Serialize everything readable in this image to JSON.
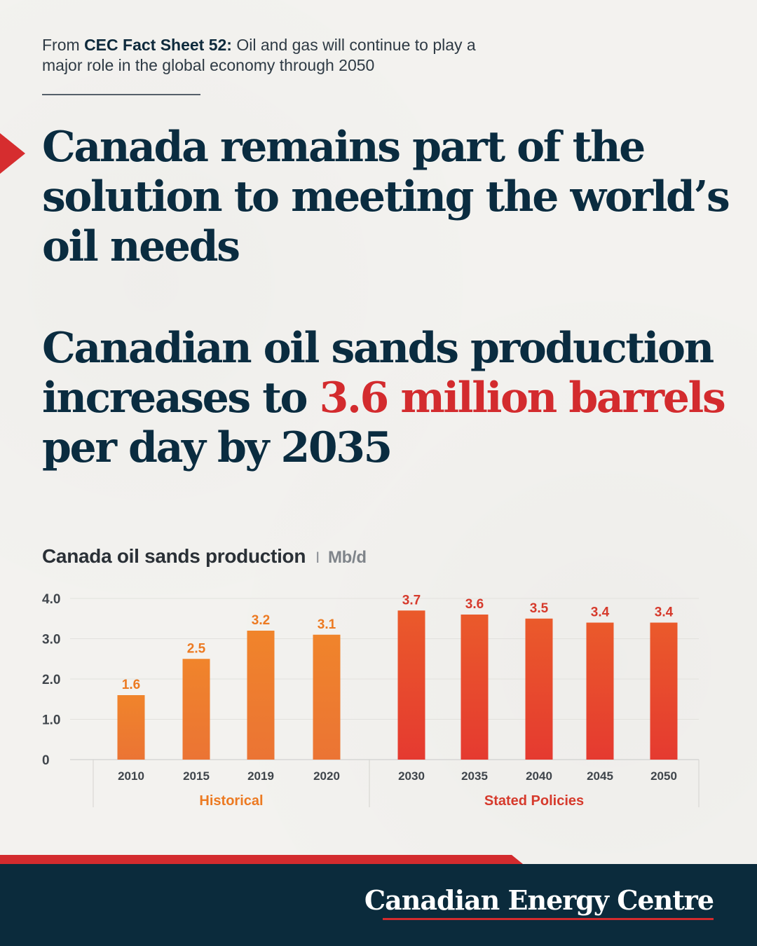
{
  "intro": {
    "prefix": "From ",
    "source": "CEC Fact Sheet 52:",
    "text": " Oil and gas will continue to play a major role in the global economy through 2050"
  },
  "headline1": "Canada remains part of the solution to meeting the world’s oil needs",
  "headline2": {
    "before": "Canadian oil sands production increases to ",
    "highlight": "3.6 million barrels",
    "after": " per day by 2035"
  },
  "colors": {
    "navy": "#0a2c40",
    "red": "#d32b2e",
    "historical_bar": "#ee7d2c",
    "historical_label": "#ec7a22",
    "policy_bar": "#e84a2c",
    "policy_label": "#d63a2c"
  },
  "chart_data": {
    "type": "bar",
    "title": "Canada oil sands production",
    "unit": "Mb/d",
    "ylim": [
      0,
      4.0
    ],
    "yticks": [
      "0",
      "1.0",
      "2.0",
      "3.0",
      "4.0"
    ],
    "grid": true,
    "groups": [
      {
        "name": "Historical",
        "categories": [
          "2010",
          "2015",
          "2019",
          "2020"
        ],
        "values": [
          1.6,
          2.5,
          3.2,
          3.1
        ],
        "labels": [
          "1.6",
          "2.5",
          "3.2",
          "3.1"
        ]
      },
      {
        "name": "Stated Policies",
        "categories": [
          "2030",
          "2035",
          "2040",
          "2045",
          "2050"
        ],
        "values": [
          3.7,
          3.6,
          3.5,
          3.4,
          3.4
        ],
        "labels": [
          "3.7",
          "3.6",
          "3.5",
          "3.4",
          "3.4"
        ]
      }
    ]
  },
  "footer": {
    "brand": "Canadian Energy Centre"
  }
}
